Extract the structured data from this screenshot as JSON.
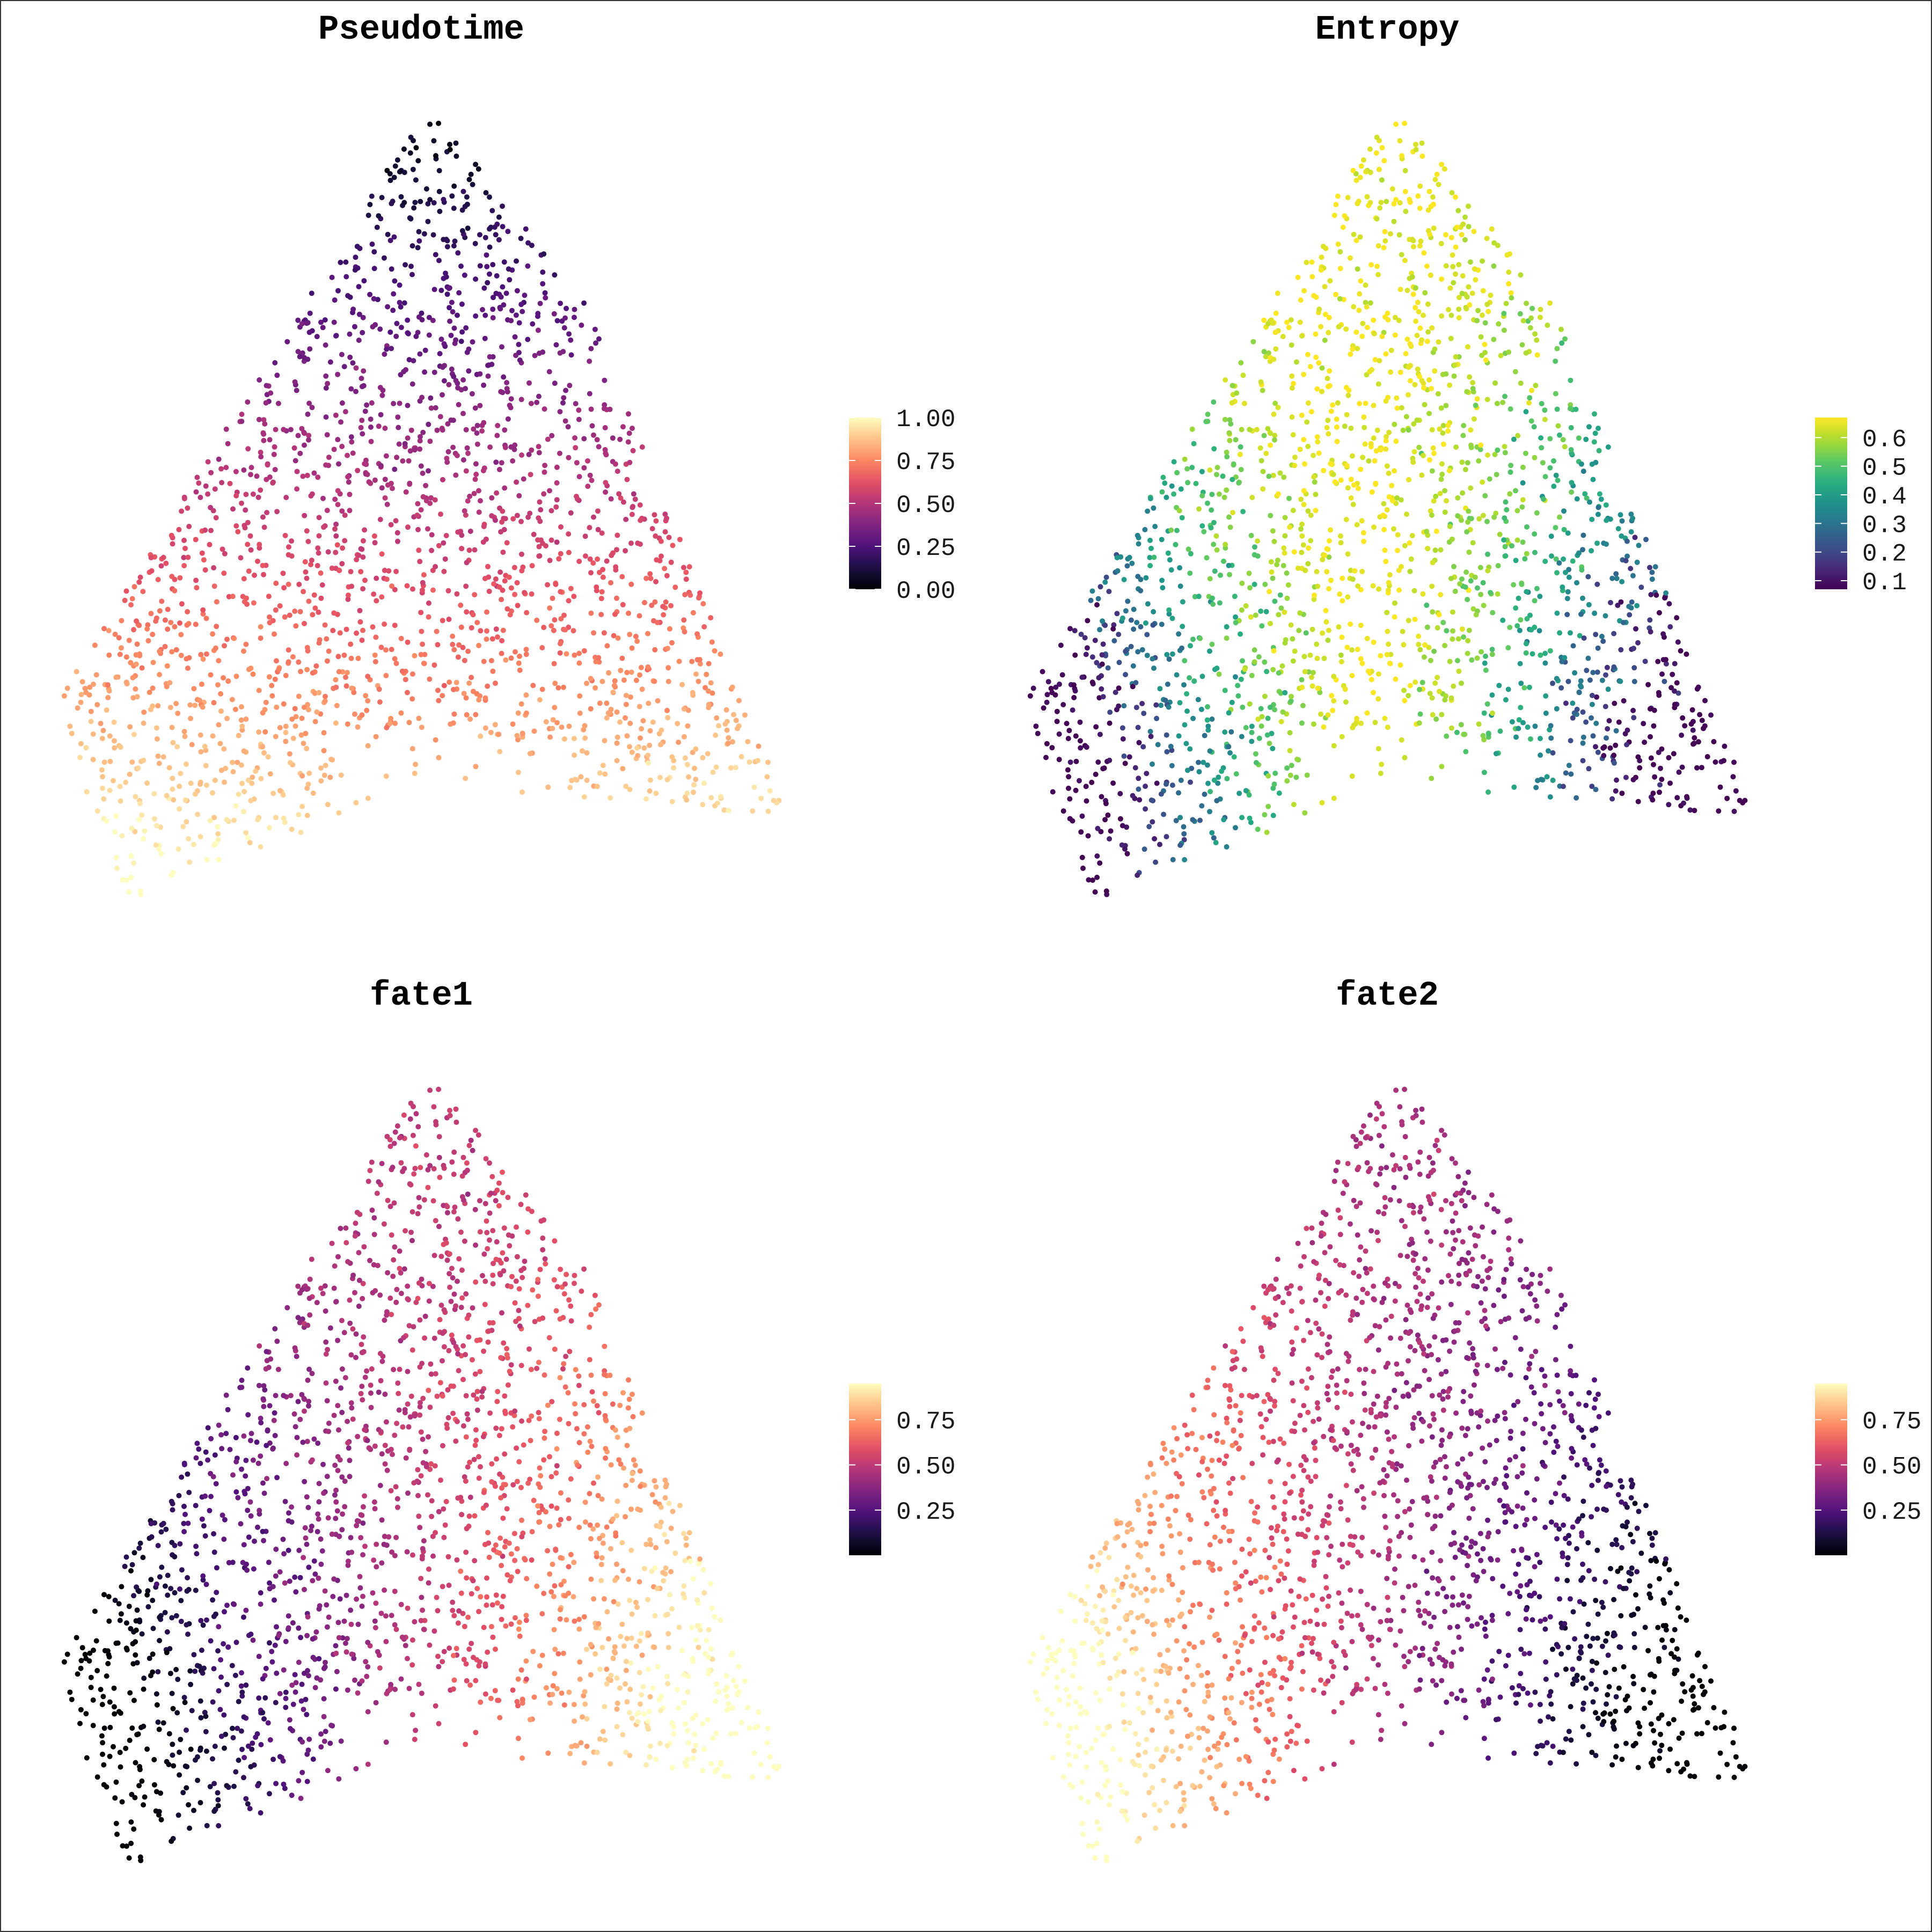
{
  "figure": {
    "panels": [
      {
        "title": "Pseudotime",
        "palette": "magma",
        "colorbar": {
          "min": 0.0,
          "max": 1.0,
          "ticks": [
            0.0,
            0.25,
            0.5,
            0.75,
            1.0
          ],
          "tick_labels": [
            "0.00",
            "0.25",
            "0.50",
            "0.75",
            "1.00"
          ]
        }
      },
      {
        "title": "Entropy",
        "palette": "viridis",
        "colorbar": {
          "min": 0.07,
          "max": 0.67,
          "ticks": [
            0.1,
            0.2,
            0.3,
            0.4,
            0.5,
            0.6
          ],
          "tick_labels": [
            "0.1",
            "0.2",
            "0.3",
            "0.4",
            "0.5",
            "0.6"
          ]
        }
      },
      {
        "title": "fate1",
        "palette": "magma",
        "colorbar": {
          "min": 0.0,
          "max": 0.95,
          "ticks": [
            0.25,
            0.5,
            0.75
          ],
          "tick_labels": [
            "0.25",
            "0.50",
            "0.75"
          ]
        }
      },
      {
        "title": "fate2",
        "palette": "magma",
        "colorbar": {
          "min": 0.0,
          "max": 0.95,
          "ticks": [
            0.25,
            0.5,
            0.75
          ],
          "tick_labels": [
            "0.25",
            "0.50",
            "0.75"
          ]
        }
      }
    ]
  },
  "chart_data": [
    {
      "type": "scatter",
      "title": "Pseudotime",
      "color_variable": "Pseudotime",
      "color_range": [
        0,
        1
      ],
      "axes_visible": false,
      "grid": false,
      "legend": "right colorbar",
      "point_count": 2000
    },
    {
      "type": "scatter",
      "title": "Entropy",
      "color_variable": "Entropy",
      "color_range": [
        0.07,
        0.67
      ],
      "axes_visible": false,
      "grid": false,
      "legend": "right colorbar",
      "point_count": 2000
    },
    {
      "type": "scatter",
      "title": "fate1",
      "color_variable": "fate1",
      "color_range": [
        0,
        0.95
      ],
      "axes_visible": false,
      "grid": false,
      "legend": "right colorbar",
      "point_count": 2000
    },
    {
      "type": "scatter",
      "title": "fate2",
      "color_variable": "fate2",
      "color_range": [
        0,
        0.95
      ],
      "axes_visible": false,
      "grid": false,
      "legend": "right colorbar",
      "point_count": 2000
    }
  ]
}
